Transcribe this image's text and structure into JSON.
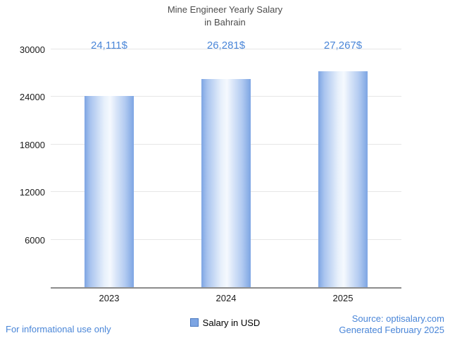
{
  "title": {
    "line1": "Mine Engineer Yearly Salary",
    "line2": "in Bahrain"
  },
  "chart_data": {
    "type": "bar",
    "title": "Mine Engineer Yearly Salary in Bahrain",
    "categories": [
      "2023",
      "2024",
      "2025"
    ],
    "values": [
      24111,
      26281,
      27267
    ],
    "value_labels": [
      "24,111$",
      "26,281$",
      "27,267$"
    ],
    "series": [
      {
        "name": "Salary in USD",
        "values": [
          24111,
          26281,
          27267
        ]
      }
    ],
    "xlabel": "",
    "ylabel": "",
    "ylim": [
      0,
      30000
    ],
    "yticks": [
      6000,
      12000,
      18000,
      24000,
      30000
    ],
    "grid": true,
    "legend_position": "bottom"
  },
  "legend": {
    "label": "Salary in USD",
    "swatch_color": "#7da5e3"
  },
  "footer": {
    "left": "For informational use only",
    "source": "Source: optisalary.com",
    "generated": "Generated February 2025"
  },
  "colors": {
    "accent_blue": "#4a86d8",
    "title_text": "#4d4d4d",
    "axis_text": "#1a1a1a",
    "gridline": "#e6e6e6",
    "baseline": "#8c8c8c",
    "bar_edge": "#7da5e3",
    "bar_highlight": "#f5f9fe"
  }
}
